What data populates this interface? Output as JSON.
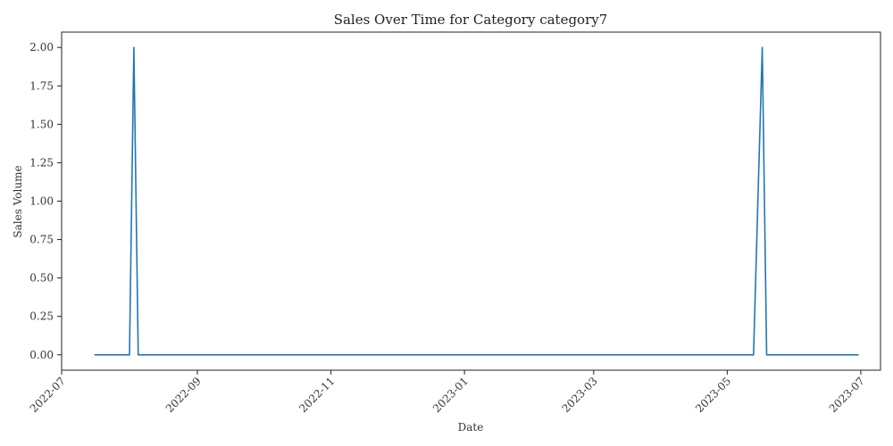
{
  "chart_data": {
    "type": "line",
    "title": "Sales Over Time for Category category7",
    "xlabel": "Date",
    "ylabel": "Sales Volume",
    "ylim": [
      -0.1,
      2.1
    ],
    "xlim": [
      "2022-07-01",
      "2023-07-10"
    ],
    "grid": false,
    "y_ticks": [
      0,
      0.25,
      0.5,
      0.75,
      1.0,
      1.25,
      1.5,
      1.75,
      2.0
    ],
    "y_tick_labels": [
      "0.00",
      "0.25",
      "0.50",
      "0.75",
      "1.00",
      "1.25",
      "1.50",
      "1.75",
      "2.00"
    ],
    "x_ticks": [
      "2022-07-01",
      "2022-09-01",
      "2022-11-01",
      "2023-01-01",
      "2023-03-01",
      "2023-05-01",
      "2023-07-01"
    ],
    "x_tick_labels": [
      "2022-07",
      "2022-09",
      "2022-11",
      "2023-01",
      "2023-03",
      "2023-05",
      "2023-07"
    ],
    "series": [
      {
        "color": "#1f77b4",
        "points": [
          {
            "x": "2022-07-16",
            "y": 0
          },
          {
            "x": "2022-08-01",
            "y": 0
          },
          {
            "x": "2022-08-03",
            "y": 2
          },
          {
            "x": "2022-08-05",
            "y": 0
          },
          {
            "x": "2023-05-13",
            "y": 0
          },
          {
            "x": "2023-05-17",
            "y": 2
          },
          {
            "x": "2023-05-19",
            "y": 0
          },
          {
            "x": "2023-06-30",
            "y": 0
          }
        ]
      }
    ]
  }
}
